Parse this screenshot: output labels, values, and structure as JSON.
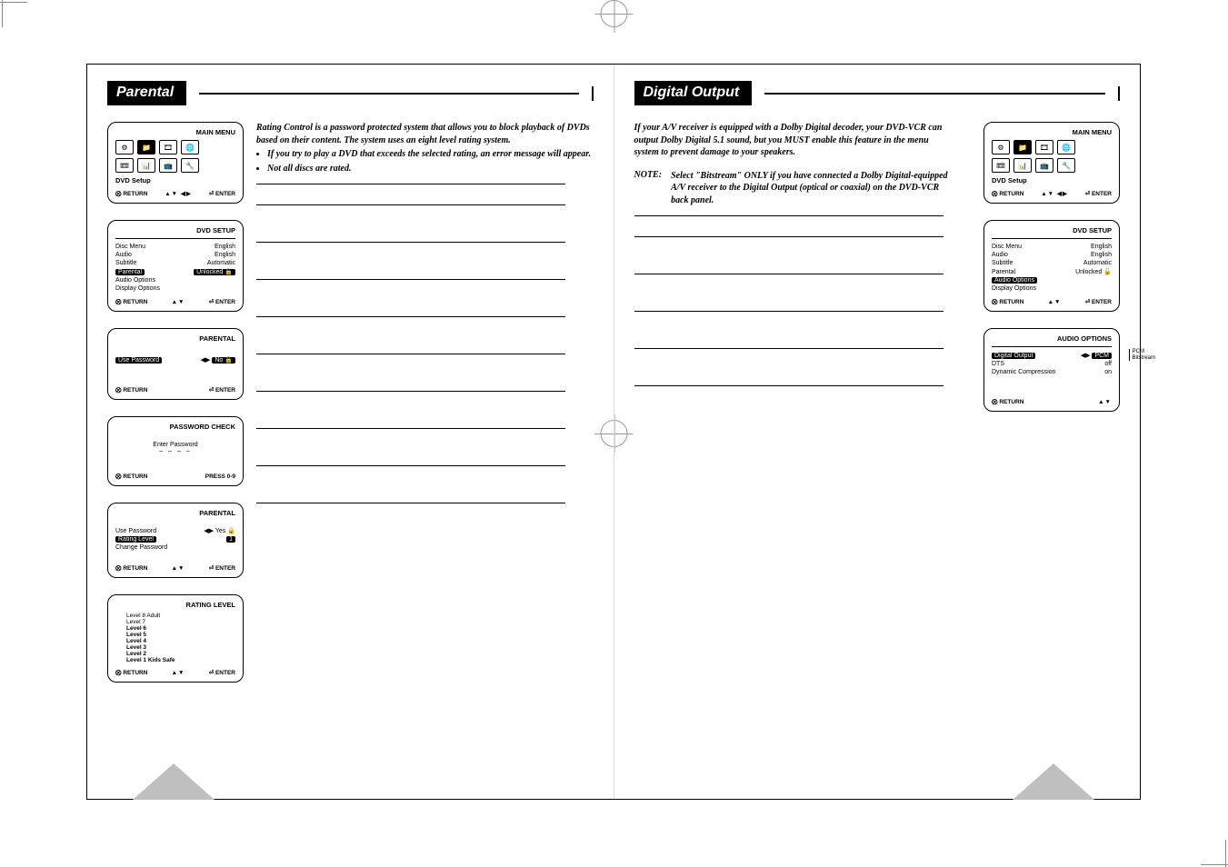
{
  "sections": {
    "left": {
      "title": "Parental"
    },
    "right": {
      "title": "Digital Output"
    }
  },
  "left_intro": {
    "para": "Rating Control is a password protected system that allows you to block playback of DVDs based on their content. The system uses an eight level rating system.",
    "bullets": [
      "If you try to play a DVD that exceeds the selected rating, an error message will appear.",
      "Not all discs are rated."
    ]
  },
  "right_intro": {
    "para": "If your A/V receiver is equipped with a Dolby Digital decoder, your DVD-VCR can output Dolby Digital 5.1 sound, but you MUST enable this feature in the menu system to prevent damage to your speakers.",
    "note_label": "NOTE:",
    "note_body": "Select \"Bitstream\" ONLY if you have connected a Dolby Digital-equipped A/V receiver to the Digital Output (optical or coaxial) on the DVD-VCR back panel."
  },
  "osd_common": {
    "return": "RETURN",
    "enter": "ENTER",
    "press09": "PRESS 0-9",
    "arrows_udlr": "▲▼ ◀▶",
    "arrows_ud": "▲▼",
    "arrows_lr": "◀▶",
    "enter_icon": "⏎"
  },
  "main_menu": {
    "title": "MAIN MENU",
    "selected": "DVD Setup",
    "icons": [
      "⚙",
      "📁",
      "🎞",
      "🌐",
      "📼",
      "📊",
      "📺",
      "🔧"
    ]
  },
  "dvd_setup_left": {
    "title": "DVD SETUP",
    "rows": [
      {
        "k": "Disc Menu",
        "v": "English"
      },
      {
        "k": "Audio",
        "v": "English"
      },
      {
        "k": "Subtitle",
        "v": "Automatic"
      },
      {
        "k": "Parental",
        "v": "Unlocked",
        "sel": true,
        "unlock": true
      },
      {
        "k": "Audio Options",
        "v": ""
      },
      {
        "k": "Display Options",
        "v": ""
      }
    ]
  },
  "dvd_setup_right": {
    "title": "DVD SETUP",
    "rows": [
      {
        "k": "Disc Menu",
        "v": "English"
      },
      {
        "k": "Audio",
        "v": "English"
      },
      {
        "k": "Subtitle",
        "v": "Automatic"
      },
      {
        "k": "Parental",
        "v": "Unlocked",
        "unlock": true
      },
      {
        "k": "Audio Options",
        "v": "",
        "sel": true
      },
      {
        "k": "Display Options",
        "v": ""
      }
    ]
  },
  "parental_panel1": {
    "title": "PARENTAL",
    "row": {
      "k": "Use Password",
      "arrow": "◀▶",
      "v": "No",
      "unlock": true
    }
  },
  "password_check": {
    "title": "PASSWORD CHECK",
    "label": "Enter Password",
    "dashes": "– – – –"
  },
  "parental_panel2": {
    "title": "PARENTAL",
    "rows": [
      {
        "k": "Use Password",
        "arrow": "◀▶",
        "v": "Yes",
        "lock": true
      },
      {
        "k": "Rating Level",
        "v": "1",
        "sel": true
      },
      {
        "k": "Change Password",
        "v": ""
      }
    ]
  },
  "rating_level": {
    "title": "RATING LEVEL",
    "items": [
      "Level 8 Adult",
      "Level 7",
      "Level 6",
      "Level 5",
      "Level 4",
      "Level 3",
      "Level 2",
      "Level 1 Kids Safe"
    ]
  },
  "audio_options": {
    "title": "AUDIO OPTIONS",
    "rows": [
      {
        "k": "Digital Output",
        "arrow": "◀▶",
        "v": "PCM",
        "sel": true
      },
      {
        "k": "DTS",
        "v": "off"
      },
      {
        "k": "Dynamic Compression",
        "v": "on"
      }
    ],
    "side_labels": [
      "PCM",
      "Bitstream"
    ]
  }
}
